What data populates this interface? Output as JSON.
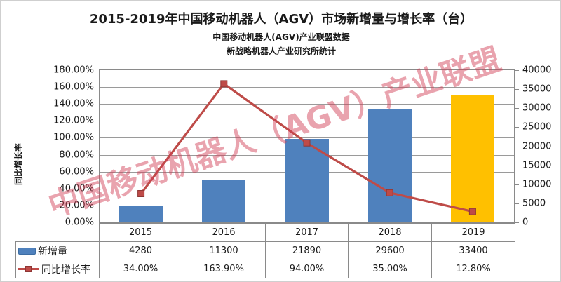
{
  "title": "2015-2019年中国移动机器人（AGV）市场新增量与增长率（台）",
  "subtitle1": "中国移动机器人(AGV)产业联盟数据",
  "subtitle2": "新战略机器人产业研究所统计",
  "watermark": "中国移动机器人（AGV）产业联盟",
  "colors": {
    "bar_blue": "#4F81BD",
    "bar_yellow": "#FFC000",
    "line_red": "#BE4B48",
    "marker_border": "#8E3634",
    "gridline": "#9a9a9a",
    "table_border": "#8a8a8a"
  },
  "chart_data": {
    "type": "bar+line",
    "title": "2015-2019年中国移动机器人（AGV）市场新增量与增长率（台）",
    "subtitles": [
      "中国移动机器人(AGV)产业联盟数据",
      "新战略机器人产业研究所统计"
    ],
    "categories": [
      "2015",
      "2016",
      "2017",
      "2018",
      "2019"
    ],
    "series": [
      {
        "name": "新增量",
        "type": "bar",
        "axis": "right",
        "values": [
          4280,
          11300,
          21890,
          29600,
          33400
        ],
        "bar_colors": [
          "#4F81BD",
          "#4F81BD",
          "#4F81BD",
          "#4F81BD",
          "#FFC000"
        ]
      },
      {
        "name": "同比增长率",
        "type": "line",
        "axis": "left",
        "values": [
          34.0,
          163.9,
          94.0,
          35.0,
          12.8
        ],
        "labels": [
          "34.00%",
          "163.90%",
          "94.00%",
          "35.00%",
          "12.80%"
        ],
        "color": "#BE4B48",
        "marker": "square"
      }
    ],
    "left_axis": {
      "label": "同比增长率",
      "min": 0,
      "max": 180,
      "step": 20,
      "ticks_top_to_bottom": [
        "180.00%",
        "160.00%",
        "140.00%",
        "120.00%",
        "100.00%",
        "80.00%",
        "60.00%",
        "40.00%",
        "20.00%",
        "0.00%"
      ]
    },
    "right_axis": {
      "min": 0,
      "max": 40000,
      "step": 5000,
      "ticks_top_to_bottom": [
        "40000",
        "35000",
        "30000",
        "25000",
        "20000",
        "15000",
        "10000",
        "5000",
        "0"
      ]
    },
    "grid": true,
    "legend_position": "data-table-left"
  },
  "table": {
    "header_row": [
      "2015",
      "2016",
      "2017",
      "2018",
      "2019"
    ],
    "rows": [
      {
        "legend": "新增量",
        "swatch": "bar",
        "cells": [
          "4280",
          "11300",
          "21890",
          "29600",
          "33400"
        ]
      },
      {
        "legend": "同比增长率",
        "swatch": "line",
        "cells": [
          "34.00%",
          "163.90%",
          "94.00%",
          "35.00%",
          "12.80%"
        ]
      }
    ]
  }
}
